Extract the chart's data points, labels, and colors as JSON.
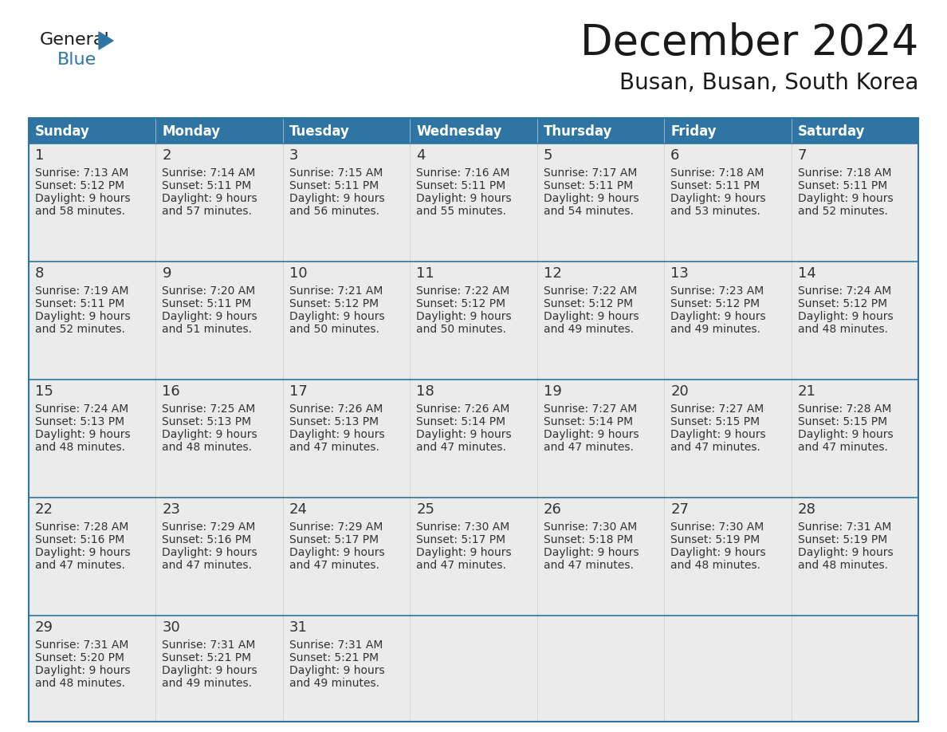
{
  "title": "December 2024",
  "subtitle": "Busan, Busan, South Korea",
  "header_color": "#2E75A3",
  "header_text_color": "#FFFFFF",
  "cell_bg_color": "#EBEBEB",
  "border_color": "#2E75A3",
  "text_color": "#333333",
  "days_of_week": [
    "Sunday",
    "Monday",
    "Tuesday",
    "Wednesday",
    "Thursday",
    "Friday",
    "Saturday"
  ],
  "calendar_data": [
    [
      {
        "day": "1",
        "sunrise": "7:13 AM",
        "sunset": "5:12 PM",
        "daylight_l1": "9 hours",
        "daylight_l2": "and 58 minutes."
      },
      {
        "day": "2",
        "sunrise": "7:14 AM",
        "sunset": "5:11 PM",
        "daylight_l1": "9 hours",
        "daylight_l2": "and 57 minutes."
      },
      {
        "day": "3",
        "sunrise": "7:15 AM",
        "sunset": "5:11 PM",
        "daylight_l1": "9 hours",
        "daylight_l2": "and 56 minutes."
      },
      {
        "day": "4",
        "sunrise": "7:16 AM",
        "sunset": "5:11 PM",
        "daylight_l1": "9 hours",
        "daylight_l2": "and 55 minutes."
      },
      {
        "day": "5",
        "sunrise": "7:17 AM",
        "sunset": "5:11 PM",
        "daylight_l1": "9 hours",
        "daylight_l2": "and 54 minutes."
      },
      {
        "day": "6",
        "sunrise": "7:18 AM",
        "sunset": "5:11 PM",
        "daylight_l1": "9 hours",
        "daylight_l2": "and 53 minutes."
      },
      {
        "day": "7",
        "sunrise": "7:18 AM",
        "sunset": "5:11 PM",
        "daylight_l1": "9 hours",
        "daylight_l2": "and 52 minutes."
      }
    ],
    [
      {
        "day": "8",
        "sunrise": "7:19 AM",
        "sunset": "5:11 PM",
        "daylight_l1": "9 hours",
        "daylight_l2": "and 52 minutes."
      },
      {
        "day": "9",
        "sunrise": "7:20 AM",
        "sunset": "5:11 PM",
        "daylight_l1": "9 hours",
        "daylight_l2": "and 51 minutes."
      },
      {
        "day": "10",
        "sunrise": "7:21 AM",
        "sunset": "5:12 PM",
        "daylight_l1": "9 hours",
        "daylight_l2": "and 50 minutes."
      },
      {
        "day": "11",
        "sunrise": "7:22 AM",
        "sunset": "5:12 PM",
        "daylight_l1": "9 hours",
        "daylight_l2": "and 50 minutes."
      },
      {
        "day": "12",
        "sunrise": "7:22 AM",
        "sunset": "5:12 PM",
        "daylight_l1": "9 hours",
        "daylight_l2": "and 49 minutes."
      },
      {
        "day": "13",
        "sunrise": "7:23 AM",
        "sunset": "5:12 PM",
        "daylight_l1": "9 hours",
        "daylight_l2": "and 49 minutes."
      },
      {
        "day": "14",
        "sunrise": "7:24 AM",
        "sunset": "5:12 PM",
        "daylight_l1": "9 hours",
        "daylight_l2": "and 48 minutes."
      }
    ],
    [
      {
        "day": "15",
        "sunrise": "7:24 AM",
        "sunset": "5:13 PM",
        "daylight_l1": "9 hours",
        "daylight_l2": "and 48 minutes."
      },
      {
        "day": "16",
        "sunrise": "7:25 AM",
        "sunset": "5:13 PM",
        "daylight_l1": "9 hours",
        "daylight_l2": "and 48 minutes."
      },
      {
        "day": "17",
        "sunrise": "7:26 AM",
        "sunset": "5:13 PM",
        "daylight_l1": "9 hours",
        "daylight_l2": "and 47 minutes."
      },
      {
        "day": "18",
        "sunrise": "7:26 AM",
        "sunset": "5:14 PM",
        "daylight_l1": "9 hours",
        "daylight_l2": "and 47 minutes."
      },
      {
        "day": "19",
        "sunrise": "7:27 AM",
        "sunset": "5:14 PM",
        "daylight_l1": "9 hours",
        "daylight_l2": "and 47 minutes."
      },
      {
        "day": "20",
        "sunrise": "7:27 AM",
        "sunset": "5:15 PM",
        "daylight_l1": "9 hours",
        "daylight_l2": "and 47 minutes."
      },
      {
        "day": "21",
        "sunrise": "7:28 AM",
        "sunset": "5:15 PM",
        "daylight_l1": "9 hours",
        "daylight_l2": "and 47 minutes."
      }
    ],
    [
      {
        "day": "22",
        "sunrise": "7:28 AM",
        "sunset": "5:16 PM",
        "daylight_l1": "9 hours",
        "daylight_l2": "and 47 minutes."
      },
      {
        "day": "23",
        "sunrise": "7:29 AM",
        "sunset": "5:16 PM",
        "daylight_l1": "9 hours",
        "daylight_l2": "and 47 minutes."
      },
      {
        "day": "24",
        "sunrise": "7:29 AM",
        "sunset": "5:17 PM",
        "daylight_l1": "9 hours",
        "daylight_l2": "and 47 minutes."
      },
      {
        "day": "25",
        "sunrise": "7:30 AM",
        "sunset": "5:17 PM",
        "daylight_l1": "9 hours",
        "daylight_l2": "and 47 minutes."
      },
      {
        "day": "26",
        "sunrise": "7:30 AM",
        "sunset": "5:18 PM",
        "daylight_l1": "9 hours",
        "daylight_l2": "and 47 minutes."
      },
      {
        "day": "27",
        "sunrise": "7:30 AM",
        "sunset": "5:19 PM",
        "daylight_l1": "9 hours",
        "daylight_l2": "and 48 minutes."
      },
      {
        "day": "28",
        "sunrise": "7:31 AM",
        "sunset": "5:19 PM",
        "daylight_l1": "9 hours",
        "daylight_l2": "and 48 minutes."
      }
    ],
    [
      {
        "day": "29",
        "sunrise": "7:31 AM",
        "sunset": "5:20 PM",
        "daylight_l1": "9 hours",
        "daylight_l2": "and 48 minutes."
      },
      {
        "day": "30",
        "sunrise": "7:31 AM",
        "sunset": "5:21 PM",
        "daylight_l1": "9 hours",
        "daylight_l2": "and 49 minutes."
      },
      {
        "day": "31",
        "sunrise": "7:31 AM",
        "sunset": "5:21 PM",
        "daylight_l1": "9 hours",
        "daylight_l2": "and 49 minutes."
      },
      null,
      null,
      null,
      null
    ]
  ],
  "logo_general_color": "#1a1a1a",
  "logo_blue_color": "#2E75A3",
  "logo_triangle_color": "#2E75A3",
  "title_fontsize": 38,
  "subtitle_fontsize": 20,
  "header_fontsize": 12,
  "day_num_fontsize": 13,
  "cell_text_fontsize": 10
}
